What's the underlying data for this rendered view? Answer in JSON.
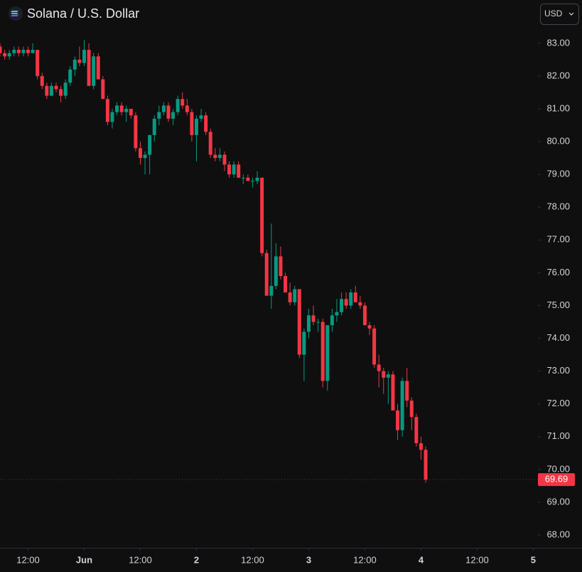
{
  "chart_data": {
    "type": "candlestick",
    "title": "Solana / U.S. Dollar",
    "currency": "USD",
    "up_color": "#089981",
    "down_color": "#f23645",
    "open": [
      82.9,
      82.7,
      82.6,
      82.7,
      82.8,
      82.7,
      82.8,
      82.7,
      82.8,
      82.0,
      81.7,
      81.4,
      81.7,
      81.6,
      81.4,
      81.8,
      82.2,
      82.5,
      82.4,
      82.8,
      81.7,
      82.6,
      81.9,
      81.3,
      80.6,
      80.9,
      81.1,
      80.9,
      81.0,
      80.8,
      79.8,
      79.5,
      79.6,
      80.2,
      80.7,
      80.9,
      81.1,
      80.7,
      80.9,
      81.3,
      81.1,
      80.9,
      80.2,
      80.7,
      80.8,
      80.3,
      79.6,
      79.5,
      79.6,
      79.3,
      79.0,
      79.3,
      78.9,
      78.9,
      78.8,
      78.8,
      78.9,
      76.6,
      75.3,
      75.6,
      76.5,
      75.9,
      75.4,
      75.1,
      75.5,
      73.5,
      74.2,
      74.7,
      74.5,
      74.5,
      72.7,
      74.4,
      74.7,
      74.8,
      75.2,
      75.0,
      75.4,
      75.1,
      75.0,
      74.4,
      74.3,
      73.2,
      73.0,
      72.8,
      72.9,
      71.8,
      71.2,
      72.7,
      72.1,
      71.6,
      70.8,
      70.6
    ],
    "high": [
      83.0,
      82.8,
      82.8,
      82.9,
      82.9,
      82.9,
      82.9,
      83.0,
      82.8,
      82.1,
      81.8,
      81.8,
      81.8,
      81.7,
      81.9,
      82.3,
      82.6,
      82.9,
      83.1,
      83.0,
      82.7,
      82.7,
      82.0,
      81.4,
      81.0,
      81.2,
      81.2,
      81.1,
      81.0,
      80.9,
      80.0,
      79.7,
      80.2,
      80.8,
      81.1,
      81.2,
      81.2,
      81.0,
      81.4,
      81.5,
      81.3,
      81.0,
      80.8,
      81.0,
      80.9,
      80.4,
      79.8,
      79.8,
      79.7,
      79.4,
      79.4,
      79.4,
      79.0,
      79.0,
      78.9,
      79.1,
      78.9,
      76.7,
      77.5,
      76.9,
      76.8,
      76.0,
      75.7,
      75.6,
      75.5,
      74.3,
      74.9,
      75.0,
      74.6,
      74.6,
      74.4,
      74.9,
      75.2,
      75.4,
      75.4,
      75.5,
      75.6,
      75.3,
      75.1,
      74.5,
      74.4,
      73.5,
      73.1,
      73.0,
      73.0,
      72.0,
      72.8,
      73.1,
      72.2,
      71.7,
      71.0,
      70.7
    ],
    "low": [
      82.6,
      82.5,
      82.5,
      82.6,
      82.6,
      82.6,
      82.6,
      82.7,
      81.9,
      81.6,
      81.3,
      81.4,
      81.5,
      81.2,
      81.3,
      81.7,
      82.0,
      82.3,
      82.3,
      81.7,
      81.6,
      81.9,
      81.3,
      80.5,
      80.4,
      80.8,
      80.8,
      80.6,
      80.7,
      79.7,
      79.3,
      79.0,
      79.0,
      80.0,
      80.5,
      80.8,
      80.6,
      80.5,
      80.8,
      81.0,
      80.8,
      80.0,
      79.4,
      80.6,
      80.2,
      79.5,
      79.4,
      79.4,
      79.1,
      78.9,
      78.9,
      78.9,
      78.7,
      78.8,
      78.6,
      78.7,
      76.5,
      75.3,
      74.9,
      75.5,
      75.8,
      75.4,
      75.0,
      75.0,
      73.4,
      72.7,
      74.0,
      74.4,
      74.2,
      72.5,
      72.4,
      74.2,
      74.5,
      74.7,
      74.9,
      74.9,
      75.1,
      74.9,
      74.4,
      74.1,
      73.1,
      72.5,
      72.3,
      72.0,
      71.8,
      70.9,
      71.0,
      71.9,
      71.2,
      70.7,
      70.3,
      69.6
    ],
    "close": [
      82.7,
      82.6,
      82.7,
      82.8,
      82.7,
      82.8,
      82.7,
      82.8,
      82.0,
      81.7,
      81.4,
      81.7,
      81.6,
      81.4,
      81.8,
      82.2,
      82.5,
      82.4,
      82.8,
      81.7,
      82.6,
      81.9,
      81.3,
      80.6,
      80.9,
      81.1,
      80.9,
      81.0,
      80.8,
      79.8,
      79.5,
      79.6,
      80.2,
      80.7,
      80.9,
      81.1,
      80.7,
      80.9,
      81.3,
      81.1,
      80.9,
      80.2,
      80.7,
      80.8,
      80.3,
      79.6,
      79.5,
      79.6,
      79.3,
      79.0,
      79.3,
      78.9,
      78.9,
      78.8,
      78.8,
      78.9,
      76.6,
      75.3,
      75.6,
      76.5,
      75.9,
      75.4,
      75.1,
      75.5,
      73.5,
      74.2,
      74.7,
      74.5,
      74.5,
      72.7,
      74.4,
      74.7,
      74.8,
      75.2,
      75.0,
      75.4,
      75.1,
      75.0,
      74.4,
      74.3,
      73.2,
      73.0,
      72.8,
      72.9,
      71.8,
      71.2,
      72.7,
      72.1,
      71.6,
      70.8,
      70.6,
      69.69
    ],
    "xlim": [
      0,
      115
    ],
    "xticks": [
      {
        "value": 6,
        "label": "12:00"
      },
      {
        "value": 18,
        "label": "Jun"
      },
      {
        "value": 30,
        "label": "12:00"
      },
      {
        "value": 42,
        "label": "2"
      },
      {
        "value": 54,
        "label": "12:00"
      },
      {
        "value": 66,
        "label": "3"
      },
      {
        "value": 78,
        "label": "12:00"
      },
      {
        "value": 90,
        "label": "4"
      },
      {
        "value": 102,
        "label": "12:00"
      },
      {
        "value": 114,
        "label": "5"
      }
    ],
    "ylim": [
      67.61,
      84.32
    ],
    "yticks": [
      {
        "value": 83,
        "label": "83.00"
      },
      {
        "value": 82,
        "label": "82.00"
      },
      {
        "value": 81,
        "label": "81.00"
      },
      {
        "value": 80,
        "label": "80.00"
      },
      {
        "value": 79,
        "label": "79.00"
      },
      {
        "value": 78,
        "label": "78.00"
      },
      {
        "value": 77,
        "label": "77.00"
      },
      {
        "value": 76,
        "label": "76.00"
      },
      {
        "value": 75,
        "label": "75.00"
      },
      {
        "value": 74,
        "label": "74.00"
      },
      {
        "value": 73,
        "label": "73.00"
      },
      {
        "value": 72,
        "label": "72.00"
      },
      {
        "value": 71,
        "label": "71.00"
      },
      {
        "value": 70,
        "label": "70.00"
      },
      {
        "value": 69,
        "label": "69.00"
      },
      {
        "value": 68,
        "label": "68.00"
      }
    ]
  }
}
